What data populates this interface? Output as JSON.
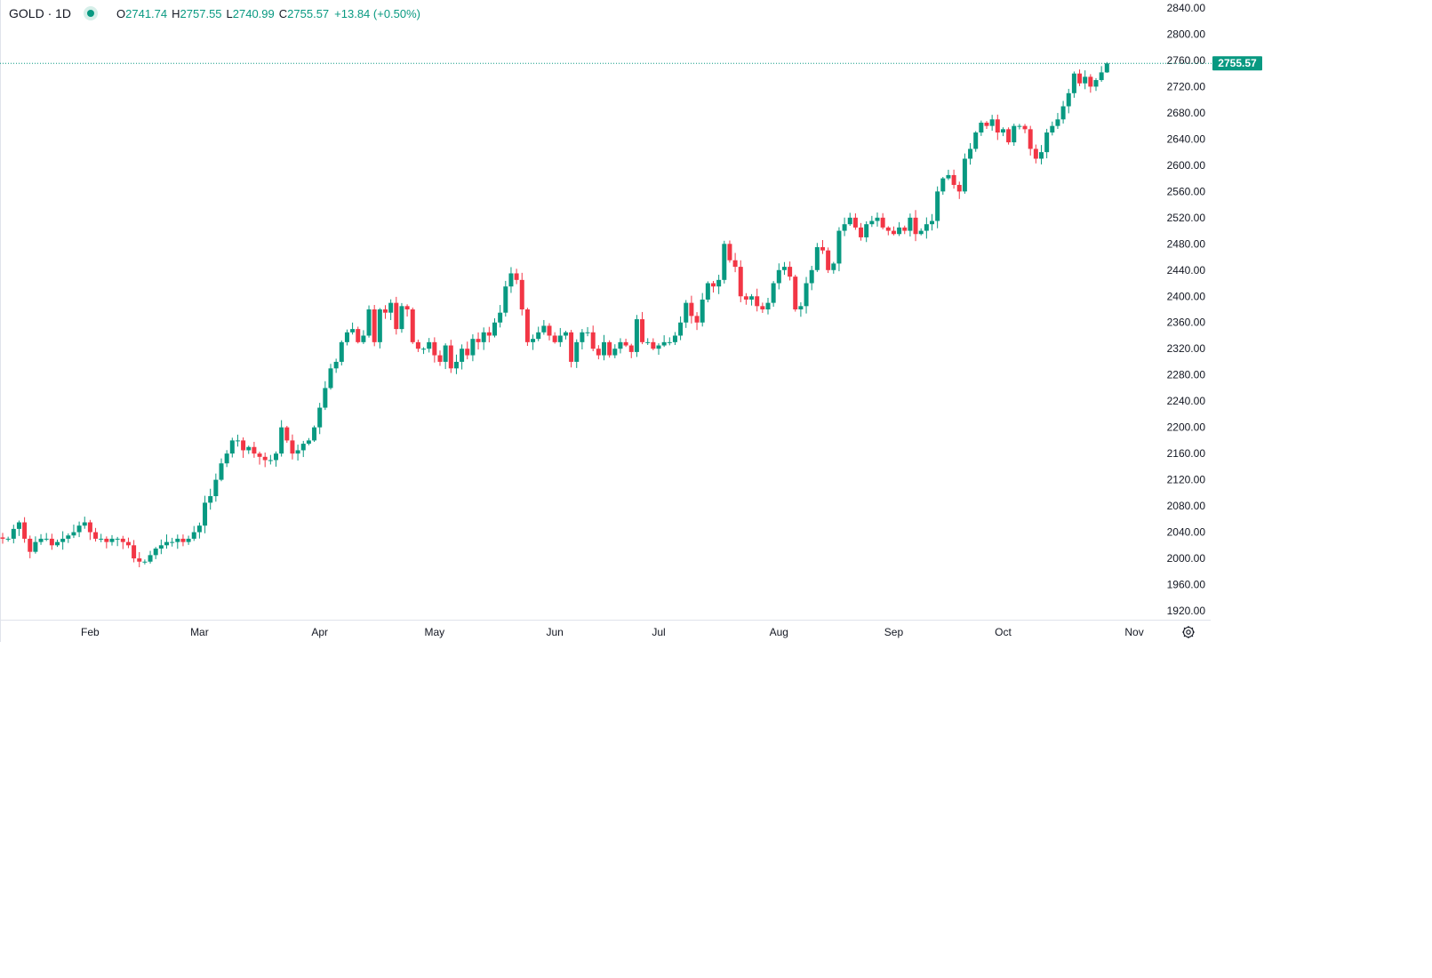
{
  "header": {
    "symbol": "GOLD · 1D",
    "open_label": "O",
    "open": "2741.74",
    "high_label": "H",
    "high": "2757.55",
    "low_label": "L",
    "low": "2740.99",
    "close_label": "C",
    "close": "2755.57",
    "change": "+13.84 (+0.50%)"
  },
  "colors": {
    "up": "#089981",
    "down": "#F23645",
    "axis_text": "#131722",
    "border": "#e0e3eb"
  },
  "chart_data": {
    "type": "candlestick",
    "title": "GOLD · 1D",
    "ylim": [
      1920,
      2840
    ],
    "y_ticks": [
      "1920.00",
      "1960.00",
      "2000.00",
      "2040.00",
      "2080.00",
      "2120.00",
      "2160.00",
      "2200.00",
      "2240.00",
      "2280.00",
      "2320.00",
      "2360.00",
      "2400.00",
      "2440.00",
      "2480.00",
      "2520.00",
      "2560.00",
      "2600.00",
      "2640.00",
      "2680.00",
      "2720.00",
      "2760.00",
      "2800.00",
      "2840.00"
    ],
    "x_ticks": [
      {
        "label": "Feb",
        "index": 16
      },
      {
        "label": "Mar",
        "index": 36
      },
      {
        "label": "Apr",
        "index": 58
      },
      {
        "label": "May",
        "index": 79
      },
      {
        "label": "Jun",
        "index": 101
      },
      {
        "label": "Jul",
        "index": 120
      },
      {
        "label": "Aug",
        "index": 142
      },
      {
        "label": "Sep",
        "index": 163
      },
      {
        "label": "Oct",
        "index": 183
      },
      {
        "label": "Nov",
        "index": 207
      }
    ],
    "last_price": "2755.57",
    "last_candle": {
      "open": 2741.74,
      "high": 2757.55,
      "low": 2740.99,
      "close": 2755.57
    },
    "first_open": 2032,
    "closes": [
      2030,
      2030,
      2045,
      2055,
      2030,
      2010,
      2025,
      2030,
      2030,
      2020,
      2025,
      2030,
      2035,
      2040,
      2050,
      2055,
      2040,
      2030,
      2030,
      2025,
      2030,
      2030,
      2025,
      2020,
      2000,
      1995,
      1995,
      2005,
      2015,
      2020,
      2025,
      2025,
      2030,
      2025,
      2030,
      2040,
      2050,
      2085,
      2095,
      2120,
      2145,
      2160,
      2180,
      2180,
      2165,
      2170,
      2160,
      2155,
      2150,
      2150,
      2160,
      2200,
      2180,
      2160,
      2165,
      2175,
      2180,
      2200,
      2230,
      2260,
      2290,
      2300,
      2330,
      2345,
      2350,
      2330,
      2340,
      2380,
      2330,
      2380,
      2375,
      2390,
      2350,
      2385,
      2380,
      2330,
      2320,
      2320,
      2330,
      2310,
      2300,
      2325,
      2290,
      2300,
      2320,
      2310,
      2335,
      2330,
      2345,
      2340,
      2360,
      2375,
      2415,
      2435,
      2425,
      2380,
      2330,
      2335,
      2345,
      2355,
      2340,
      2330,
      2340,
      2345,
      2300,
      2330,
      2345,
      2345,
      2320,
      2310,
      2330,
      2310,
      2320,
      2330,
      2325,
      2315,
      2365,
      2330,
      2330,
      2320,
      2325,
      2330,
      2330,
      2340,
      2360,
      2390,
      2370,
      2360,
      2395,
      2420,
      2415,
      2425,
      2480,
      2455,
      2445,
      2400,
      2395,
      2400,
      2385,
      2380,
      2390,
      2420,
      2440,
      2445,
      2430,
      2380,
      2385,
      2420,
      2440,
      2475,
      2470,
      2440,
      2450,
      2500,
      2510,
      2520,
      2505,
      2490,
      2510,
      2515,
      2520,
      2505,
      2500,
      2495,
      2505,
      2500,
      2520,
      2495,
      2500,
      2510,
      2515,
      2560,
      2580,
      2585,
      2570,
      2560,
      2610,
      2625,
      2650,
      2665,
      2660,
      2670,
      2650,
      2655,
      2635,
      2660,
      2660,
      2655,
      2625,
      2610,
      2620,
      2650,
      2660,
      2670,
      2690,
      2710,
      2740,
      2725,
      2735,
      2720,
      2730,
      2741.74,
      2755.57
    ]
  }
}
